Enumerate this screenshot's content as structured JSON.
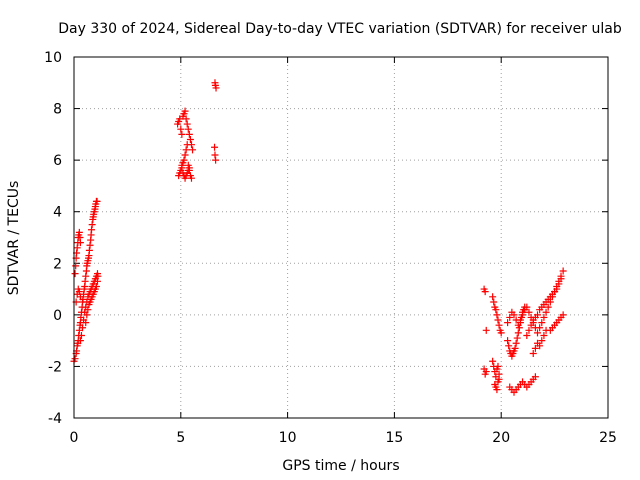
{
  "chart_data": {
    "type": "scatter",
    "title": "Day 330 of 2024, Sidereal Day-to-day VTEC variation (SDTVAR) for receiver ulab",
    "xlabel": "GPS time / hours",
    "ylabel": "SDTVAR / TECUs",
    "xlim": [
      0,
      25
    ],
    "ylim": [
      -4,
      10
    ],
    "xticks": [
      "0",
      "5",
      "10",
      "15",
      "20",
      "25"
    ],
    "yticks": [
      "-4",
      "-2",
      "0",
      "2",
      "4",
      "6",
      "8",
      "10"
    ],
    "grid": true,
    "marker": "+",
    "marker_color": "#ff0000",
    "series": [
      {
        "name": "SDTVAR",
        "x": [
          0.0,
          0.05,
          0.1,
          0.12,
          0.15,
          0.18,
          0.2,
          0.22,
          0.25,
          0.28,
          0.3,
          0.32,
          0.35,
          0.38,
          0.4,
          0.42,
          0.45,
          0.48,
          0.5,
          0.52,
          0.55,
          0.58,
          0.6,
          0.62,
          0.65,
          0.68,
          0.7,
          0.72,
          0.75,
          0.78,
          0.8,
          0.82,
          0.85,
          0.88,
          0.9,
          0.92,
          0.95,
          0.98,
          1.0,
          1.02,
          1.05,
          1.08,
          0.05,
          0.08,
          0.1,
          0.12,
          0.15,
          0.18,
          0.2,
          0.22,
          0.25,
          0.28,
          0.3,
          0.3,
          0.35,
          0.4,
          0.45,
          0.5,
          0.55,
          0.6,
          0.65,
          0.7,
          0.75,
          0.8,
          0.85,
          0.9,
          0.95,
          1.0,
          1.05,
          1.1,
          0.55,
          0.6,
          0.65,
          0.7,
          0.75,
          0.8,
          0.85,
          0.9,
          0.95,
          1.0,
          1.05,
          1.1,
          1.12,
          0.1,
          0.15,
          0.2,
          0.25,
          0.3,
          4.85,
          4.9,
          4.95,
          5.0,
          5.05,
          5.1,
          5.15,
          5.2,
          5.25,
          5.3,
          5.35,
          5.4,
          5.45,
          5.5,
          5.55,
          4.9,
          4.95,
          5.0,
          5.05,
          5.1,
          5.15,
          5.2,
          5.25,
          5.3,
          5.35,
          5.4,
          5.45,
          5.5,
          5.05,
          5.1,
          5.15,
          5.2,
          5.25,
          5.3,
          5.35,
          5.4,
          6.6,
          6.62,
          6.65,
          6.58,
          6.6,
          6.63,
          19.2,
          19.25,
          19.3,
          19.2,
          19.25,
          19.3,
          19.6,
          19.65,
          19.7,
          19.75,
          19.8,
          19.85,
          19.9,
          19.95,
          20.0,
          19.6,
          19.65,
          19.7,
          19.75,
          19.8,
          19.85,
          19.9,
          19.7,
          19.75,
          19.8,
          19.85,
          19.9,
          20.3,
          20.4,
          20.5,
          20.6,
          20.7,
          20.8,
          20.9,
          21.0,
          21.1,
          21.2,
          21.3,
          21.4,
          21.5,
          21.6,
          21.7,
          20.3,
          20.35,
          20.4,
          20.45,
          20.5,
          20.55,
          20.6,
          20.65,
          20.7,
          20.75,
          20.8,
          20.85,
          20.9,
          20.95,
          21.0,
          21.05,
          21.1,
          20.4,
          20.5,
          20.6,
          20.7,
          20.8,
          20.9,
          21.0,
          21.1,
          21.2,
          21.3,
          21.4,
          21.5,
          21.6,
          21.2,
          21.3,
          21.4,
          21.5,
          21.6,
          21.7,
          21.8,
          21.9,
          22.0,
          22.1,
          22.2,
          22.3,
          22.4,
          22.5,
          22.6,
          22.7,
          22.8,
          21.8,
          21.9,
          22.0,
          22.1,
          22.2,
          22.3,
          22.4,
          22.5,
          22.6,
          22.7,
          22.8,
          22.9,
          22.3,
          22.4,
          22.5,
          22.6,
          22.7,
          22.8,
          22.9,
          21.5,
          21.6,
          21.7,
          21.8,
          21.9,
          22.0,
          22.1
        ],
        "y": [
          -1.8,
          -1.7,
          -1.5,
          -1.4,
          -1.2,
          -1.1,
          -1.0,
          -0.8,
          -0.6,
          -0.4,
          -0.3,
          -0.1,
          0.1,
          0.3,
          0.5,
          0.6,
          0.8,
          1.0,
          1.1,
          1.3,
          1.5,
          1.7,
          1.9,
          2.0,
          2.1,
          2.2,
          2.3,
          2.5,
          2.7,
          2.9,
          3.1,
          3.3,
          3.5,
          3.7,
          3.8,
          3.9,
          4.0,
          4.1,
          4.2,
          4.3,
          4.4,
          4.4,
          1.6,
          1.9,
          2.2,
          2.4,
          2.6,
          2.8,
          3.0,
          3.1,
          3.2,
          3.0,
          2.8,
          -1.0,
          -0.8,
          -0.5,
          -0.2,
          0.1,
          0.3,
          0.5,
          0.7,
          0.8,
          0.9,
          1.0,
          1.1,
          1.2,
          1.3,
          1.4,
          1.5,
          1.6,
          -0.3,
          0.0,
          0.2,
          0.4,
          0.5,
          0.6,
          0.7,
          0.8,
          0.9,
          1.0,
          1.1,
          1.3,
          1.5,
          0.5,
          0.8,
          1.0,
          0.9,
          0.7,
          7.4,
          7.5,
          7.6,
          7.2,
          7.0,
          7.7,
          7.8,
          7.9,
          7.6,
          7.4,
          7.2,
          7.0,
          6.8,
          6.6,
          6.4,
          5.4,
          5.5,
          5.6,
          5.7,
          5.5,
          5.4,
          5.3,
          5.4,
          5.5,
          5.6,
          5.7,
          5.4,
          5.3,
          5.8,
          5.9,
          6.0,
          6.2,
          6.4,
          6.6,
          5.8,
          5.6,
          9.0,
          8.9,
          8.8,
          6.5,
          6.2,
          6.0,
          1.0,
          0.9,
          -0.6,
          -2.1,
          -2.3,
          -2.2,
          0.7,
          0.5,
          0.3,
          0.2,
          0.0,
          -0.2,
          -0.4,
          -0.6,
          -0.7,
          -1.8,
          -2.0,
          -2.2,
          -2.4,
          -2.1,
          -2.0,
          -2.3,
          -2.7,
          -2.8,
          -2.9,
          -2.6,
          -2.5,
          -0.3,
          -0.1,
          0.1,
          0.0,
          -0.2,
          -0.4,
          -0.2,
          0.0,
          0.2,
          0.3,
          0.1,
          -0.1,
          -0.3,
          -0.5,
          -0.7,
          -1.0,
          -1.2,
          -1.4,
          -1.5,
          -1.6,
          -1.5,
          -1.4,
          -1.3,
          -1.1,
          -0.9,
          -0.7,
          -0.5,
          -0.3,
          -0.1,
          0.1,
          0.2,
          0.3,
          -2.8,
          -2.9,
          -3.0,
          -2.9,
          -2.8,
          -2.7,
          -2.6,
          -2.7,
          -2.8,
          -2.7,
          -2.6,
          -2.5,
          -2.4,
          -0.8,
          -0.6,
          -0.4,
          -0.2,
          -0.1,
          0.0,
          0.2,
          0.3,
          0.4,
          0.5,
          0.6,
          0.7,
          0.8,
          0.9,
          1.0,
          1.2,
          1.4,
          -0.5,
          -0.3,
          -0.1,
          0.1,
          0.3,
          0.5,
          0.7,
          0.9,
          1.1,
          1.3,
          1.5,
          1.7,
          -0.6,
          -0.5,
          -0.4,
          -0.3,
          -0.2,
          -0.1,
          0.0,
          -1.5,
          -1.3,
          -1.1,
          -1.2,
          -1.0,
          -0.8,
          -0.6
        ]
      }
    ]
  }
}
